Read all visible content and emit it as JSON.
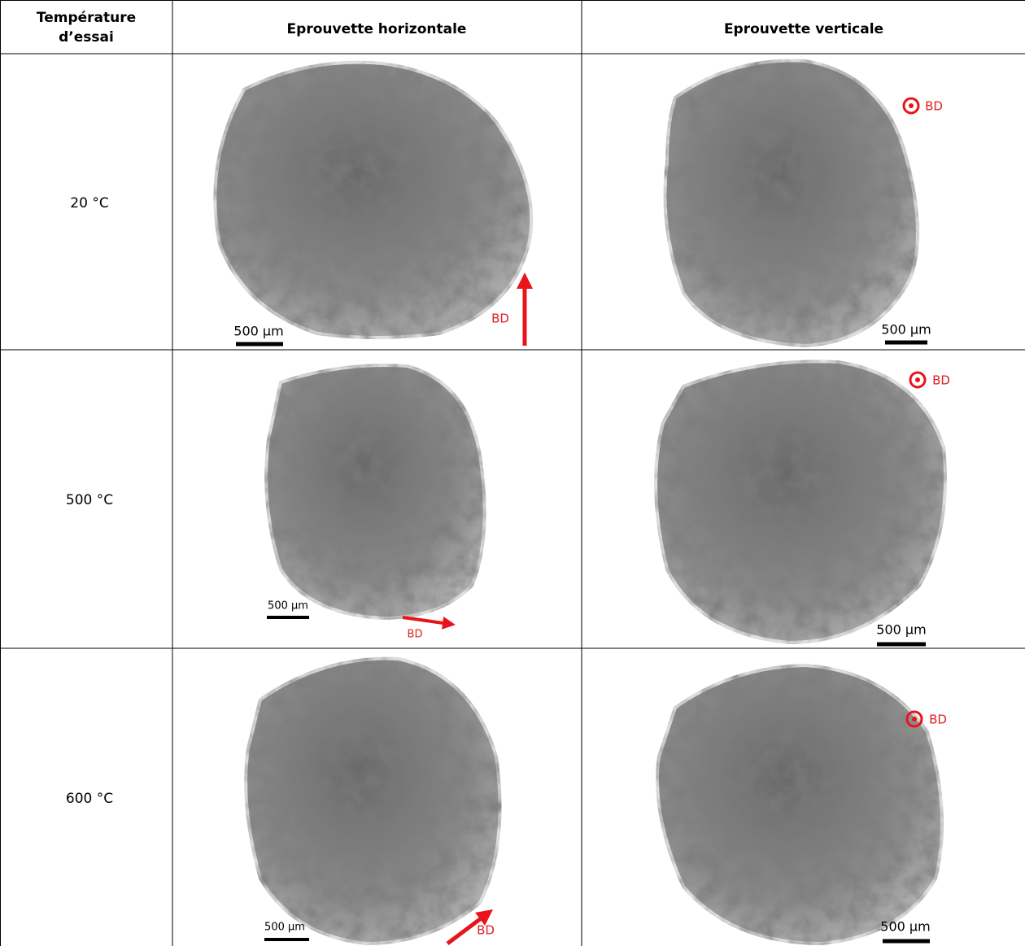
{
  "table": {
    "header": {
      "temperature": [
        "Température",
        "d’essai"
      ],
      "horizontal": "Eprouvette horizontale",
      "vertical": "Eprouvette verticale"
    },
    "rows": [
      {
        "temperature": "20 °C",
        "horizontal": {
          "scale": "500 µm",
          "direction": "BD"
        },
        "vertical": {
          "scale": "500 µm",
          "direction": "BD"
        }
      },
      {
        "temperature": "500 °C",
        "horizontal": {
          "scale": "500 µm",
          "direction": "BD"
        },
        "vertical": {
          "scale": "500 µm",
          "direction": "BD"
        }
      },
      {
        "temperature": "600 °C",
        "horizontal": {
          "scale": "500 µm",
          "direction": "BD"
        },
        "vertical": {
          "scale": "500 µm",
          "direction": "BD"
        }
      }
    ]
  }
}
